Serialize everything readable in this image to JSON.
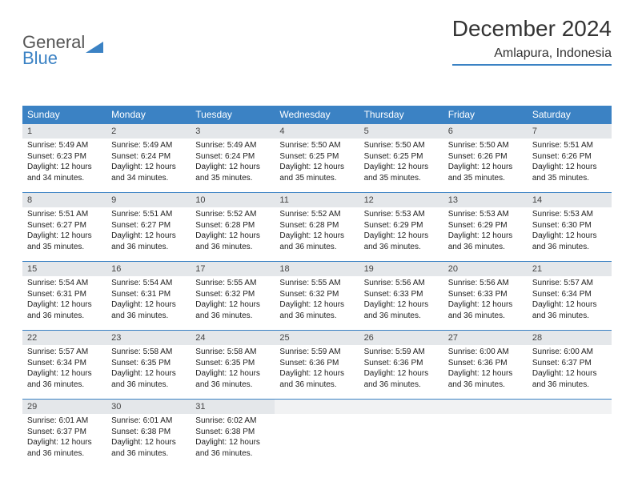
{
  "brand": {
    "part1": "General",
    "part2": "Blue"
  },
  "title": "December 2024",
  "location": "Amlapura, Indonesia",
  "colors": {
    "header_bg": "#3b82c4",
    "header_text": "#ffffff",
    "daynum_bg": "#e4e7ea",
    "border": "#3b82c4",
    "text": "#222222"
  },
  "weekdays": [
    "Sunday",
    "Monday",
    "Tuesday",
    "Wednesday",
    "Thursday",
    "Friday",
    "Saturday"
  ],
  "days": [
    {
      "n": "1",
      "sunrise": "5:49 AM",
      "sunset": "6:23 PM",
      "daylight": "12 hours and 34 minutes."
    },
    {
      "n": "2",
      "sunrise": "5:49 AM",
      "sunset": "6:24 PM",
      "daylight": "12 hours and 34 minutes."
    },
    {
      "n": "3",
      "sunrise": "5:49 AM",
      "sunset": "6:24 PM",
      "daylight": "12 hours and 35 minutes."
    },
    {
      "n": "4",
      "sunrise": "5:50 AM",
      "sunset": "6:25 PM",
      "daylight": "12 hours and 35 minutes."
    },
    {
      "n": "5",
      "sunrise": "5:50 AM",
      "sunset": "6:25 PM",
      "daylight": "12 hours and 35 minutes."
    },
    {
      "n": "6",
      "sunrise": "5:50 AM",
      "sunset": "6:26 PM",
      "daylight": "12 hours and 35 minutes."
    },
    {
      "n": "7",
      "sunrise": "5:51 AM",
      "sunset": "6:26 PM",
      "daylight": "12 hours and 35 minutes."
    },
    {
      "n": "8",
      "sunrise": "5:51 AM",
      "sunset": "6:27 PM",
      "daylight": "12 hours and 35 minutes."
    },
    {
      "n": "9",
      "sunrise": "5:51 AM",
      "sunset": "6:27 PM",
      "daylight": "12 hours and 36 minutes."
    },
    {
      "n": "10",
      "sunrise": "5:52 AM",
      "sunset": "6:28 PM",
      "daylight": "12 hours and 36 minutes."
    },
    {
      "n": "11",
      "sunrise": "5:52 AM",
      "sunset": "6:28 PM",
      "daylight": "12 hours and 36 minutes."
    },
    {
      "n": "12",
      "sunrise": "5:53 AM",
      "sunset": "6:29 PM",
      "daylight": "12 hours and 36 minutes."
    },
    {
      "n": "13",
      "sunrise": "5:53 AM",
      "sunset": "6:29 PM",
      "daylight": "12 hours and 36 minutes."
    },
    {
      "n": "14",
      "sunrise": "5:53 AM",
      "sunset": "6:30 PM",
      "daylight": "12 hours and 36 minutes."
    },
    {
      "n": "15",
      "sunrise": "5:54 AM",
      "sunset": "6:31 PM",
      "daylight": "12 hours and 36 minutes."
    },
    {
      "n": "16",
      "sunrise": "5:54 AM",
      "sunset": "6:31 PM",
      "daylight": "12 hours and 36 minutes."
    },
    {
      "n": "17",
      "sunrise": "5:55 AM",
      "sunset": "6:32 PM",
      "daylight": "12 hours and 36 minutes."
    },
    {
      "n": "18",
      "sunrise": "5:55 AM",
      "sunset": "6:32 PM",
      "daylight": "12 hours and 36 minutes."
    },
    {
      "n": "19",
      "sunrise": "5:56 AM",
      "sunset": "6:33 PM",
      "daylight": "12 hours and 36 minutes."
    },
    {
      "n": "20",
      "sunrise": "5:56 AM",
      "sunset": "6:33 PM",
      "daylight": "12 hours and 36 minutes."
    },
    {
      "n": "21",
      "sunrise": "5:57 AM",
      "sunset": "6:34 PM",
      "daylight": "12 hours and 36 minutes."
    },
    {
      "n": "22",
      "sunrise": "5:57 AM",
      "sunset": "6:34 PM",
      "daylight": "12 hours and 36 minutes."
    },
    {
      "n": "23",
      "sunrise": "5:58 AM",
      "sunset": "6:35 PM",
      "daylight": "12 hours and 36 minutes."
    },
    {
      "n": "24",
      "sunrise": "5:58 AM",
      "sunset": "6:35 PM",
      "daylight": "12 hours and 36 minutes."
    },
    {
      "n": "25",
      "sunrise": "5:59 AM",
      "sunset": "6:36 PM",
      "daylight": "12 hours and 36 minutes."
    },
    {
      "n": "26",
      "sunrise": "5:59 AM",
      "sunset": "6:36 PM",
      "daylight": "12 hours and 36 minutes."
    },
    {
      "n": "27",
      "sunrise": "6:00 AM",
      "sunset": "6:36 PM",
      "daylight": "12 hours and 36 minutes."
    },
    {
      "n": "28",
      "sunrise": "6:00 AM",
      "sunset": "6:37 PM",
      "daylight": "12 hours and 36 minutes."
    },
    {
      "n": "29",
      "sunrise": "6:01 AM",
      "sunset": "6:37 PM",
      "daylight": "12 hours and 36 minutes."
    },
    {
      "n": "30",
      "sunrise": "6:01 AM",
      "sunset": "6:38 PM",
      "daylight": "12 hours and 36 minutes."
    },
    {
      "n": "31",
      "sunrise": "6:02 AM",
      "sunset": "6:38 PM",
      "daylight": "12 hours and 36 minutes."
    }
  ],
  "labels": {
    "sunrise_prefix": "Sunrise: ",
    "sunset_prefix": "Sunset: ",
    "daylight_prefix": "Daylight: "
  },
  "layout": {
    "first_weekday_index": 0,
    "trailing_empty": 4
  }
}
